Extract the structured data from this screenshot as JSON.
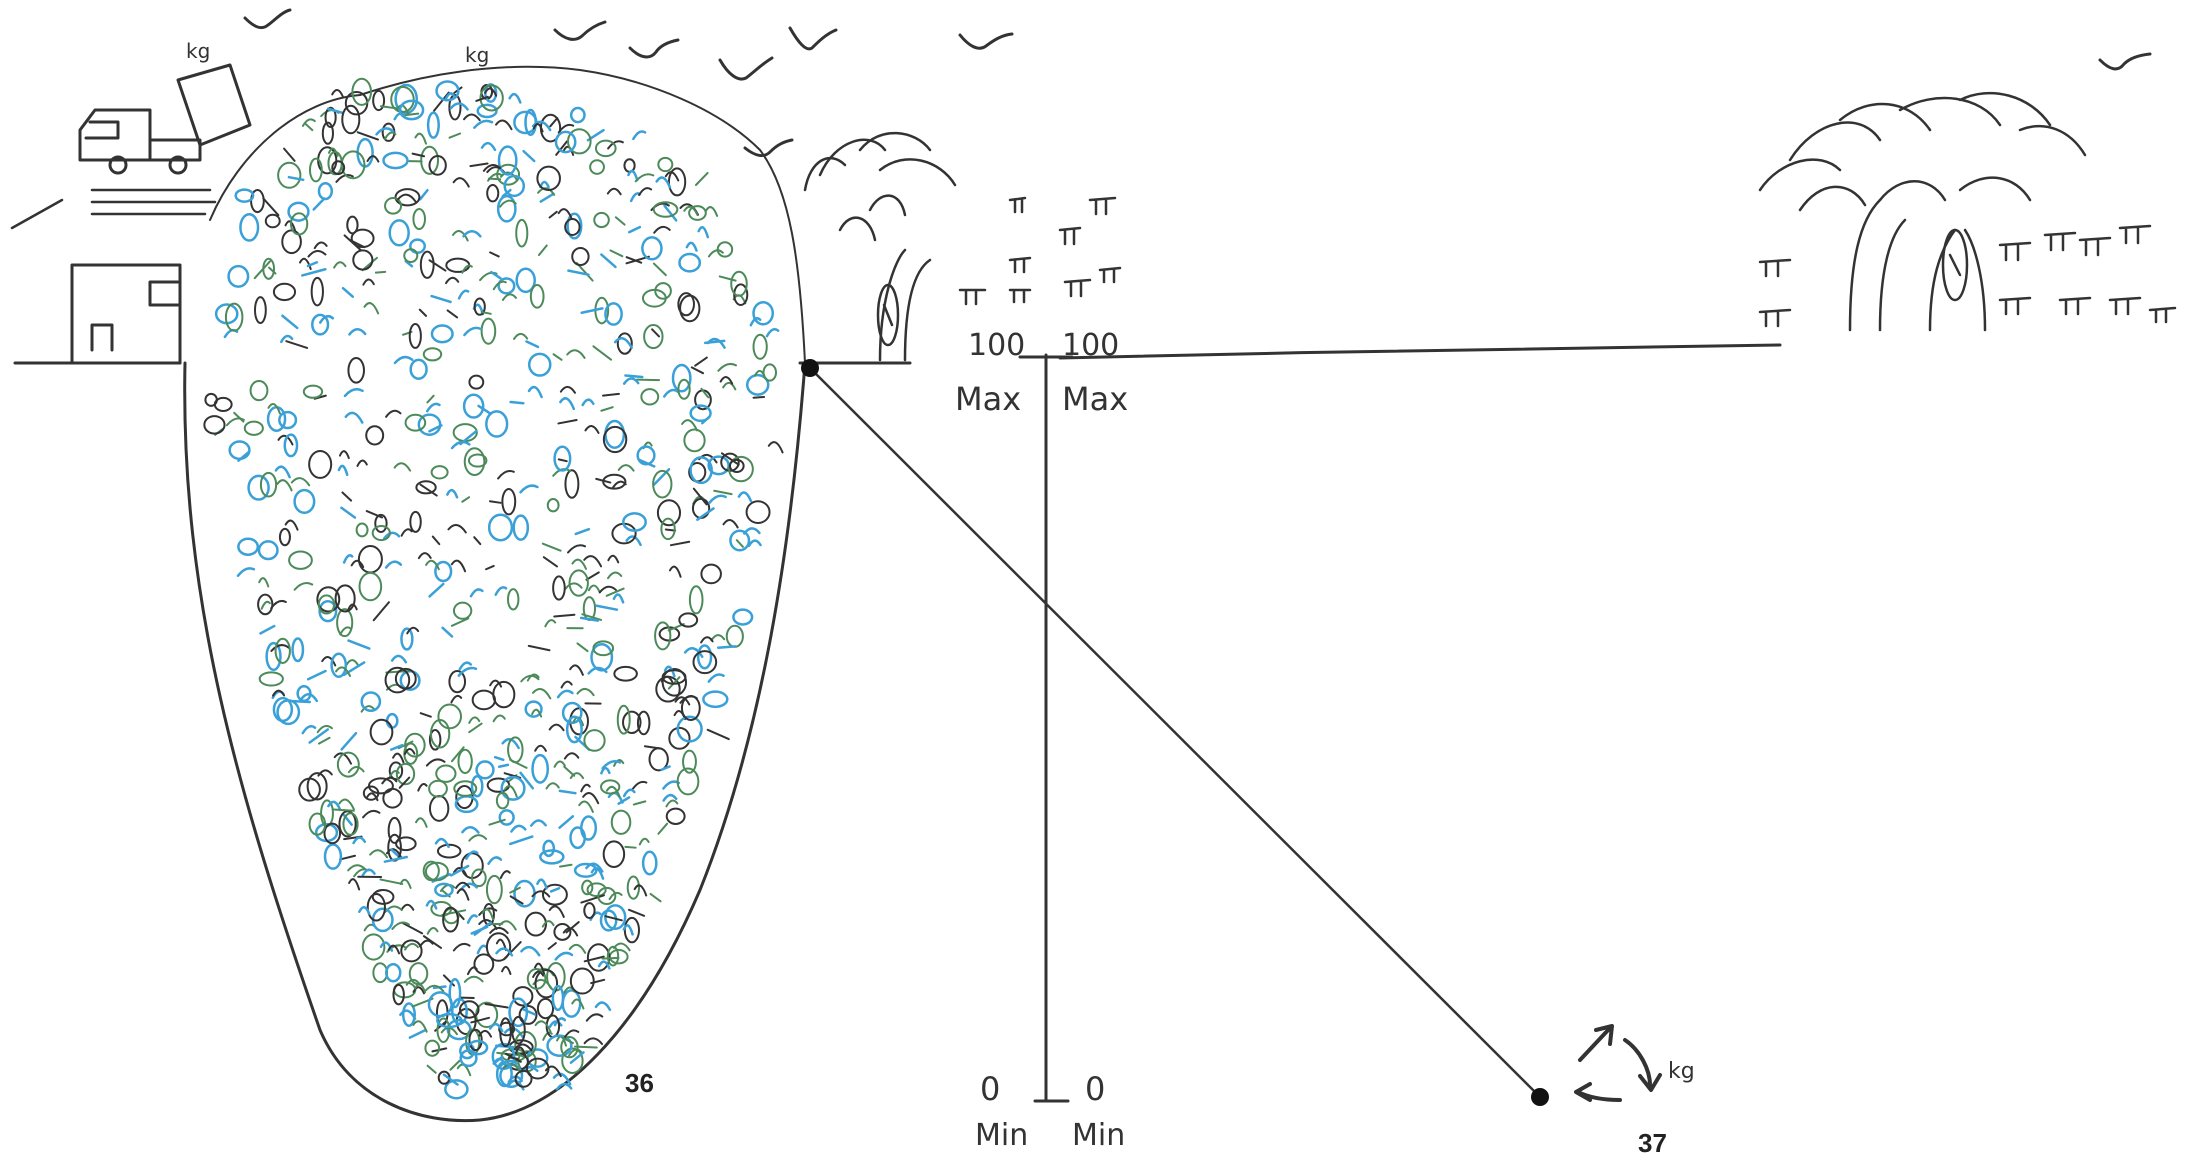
{
  "labels": {
    "unit_truck": "kg",
    "unit_pile": "kg",
    "unit_recycle": "kg",
    "scale_left_top": "100",
    "scale_right_top": "100",
    "scale_left_max": "Max",
    "scale_right_max": "Max",
    "scale_left_bottom": "0",
    "scale_right_bottom": "0",
    "scale_left_min": "Min",
    "scale_right_min": "Min",
    "figure_left": "36",
    "figure_right": "37"
  },
  "colors": {
    "ink": "#333333",
    "waste_green": "#4c8a5a",
    "waste_blue": "#3aa0d8",
    "waste_dark": "#333333"
  },
  "icons": {
    "truck": "dump-truck-icon",
    "house": "house-icon",
    "birds": "bird-icon",
    "recycle": "recycle-arrows-icon"
  }
}
